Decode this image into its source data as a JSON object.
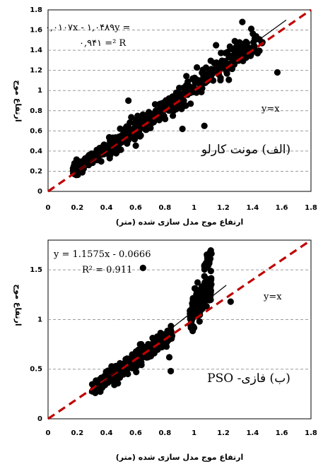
{
  "chart_data": [
    {
      "type": "scatter",
      "panel": "top",
      "xlabel": "ارتفاع موج مدل سازی شده (متر)",
      "ylabel": "ارتفاع موج",
      "xlim": [
        0,
        1.8
      ],
      "ylim": [
        0,
        1.8
      ],
      "x_ticks": [
        "0",
        "0.2",
        "0.4",
        "0.6",
        "0.8",
        "1",
        "1.2",
        "1.4",
        "1.6",
        "1.8"
      ],
      "y_ticks": [
        "0",
        "0.2",
        "0.4",
        "0.6",
        "0.8",
        "1",
        "1.2",
        "1.4",
        "1.6",
        "1.8"
      ],
      "grid": "horizontal dashed",
      "equation": "۰,۰۱۰۷x - ۱,۰۴۸۹y =",
      "r_squared": "۰,۹۴۱ =² R",
      "identity_label": "y=x",
      "method_label": "(الف) مونت کارلو",
      "trendline": {
        "slope": 1.0489,
        "intercept": -0.0107
      },
      "identity_color": "#c00000",
      "outliers": [
        [
          1.57,
          1.18
        ],
        [
          0.86,
          0.8
        ],
        [
          1.07,
          0.65
        ],
        [
          0.92,
          0.62
        ],
        [
          1.33,
          1.68
        ],
        [
          1.15,
          1.45
        ],
        [
          0.55,
          0.9
        ]
      ],
      "clusters": [
        {
          "x": [
            0.17,
            0.4
          ],
          "slope": 1.0,
          "intercept": 0.03,
          "spread": 0.05,
          "count": 170
        },
        {
          "x": [
            0.4,
            0.9
          ],
          "slope": 1.05,
          "intercept": -0.01,
          "spread": 0.09,
          "count": 230
        },
        {
          "x": [
            0.9,
            1.47
          ],
          "slope": 1.05,
          "intercept": -0.01,
          "spread": 0.12,
          "count": 170
        }
      ]
    },
    {
      "type": "scatter",
      "panel": "bottom",
      "xlabel": "ارتفاع موج مدل سازی شده (متر)",
      "ylabel": "ارتفاع موج",
      "xlim": [
        0,
        1.8
      ],
      "ylim": [
        0,
        1.8
      ],
      "x_ticks": [
        "0",
        "0.2",
        "0.4",
        "0.6",
        "0.8",
        "1",
        "1.2",
        "1.4",
        "1.6",
        "1.8"
      ],
      "y_ticks": [
        "0",
        "0.5",
        "1",
        "1.5"
      ],
      "grid": "horizontal dashed",
      "equation": "y = 1.1575x - 0.0666",
      "r_squared": "R² = 0.911",
      "identity_label": "y=x",
      "method_label": "(ب) فازی- PSO",
      "trendline": {
        "slope": 1.1575,
        "intercept": -0.0666
      },
      "identity_color": "#c00000",
      "outliers": [
        [
          0.65,
          1.52
        ],
        [
          1.25,
          1.18
        ],
        [
          0.63,
          0.75
        ],
        [
          0.84,
          0.48
        ],
        [
          0.83,
          0.62
        ]
      ],
      "clusters": [
        {
          "x": [
            0.3,
            0.85
          ],
          "slope": 1.0,
          "intercept": 0.0,
          "spread": 0.08,
          "count": 340
        },
        {
          "x": [
            0.97,
            1.12
          ],
          "slope": 2.2,
          "intercept": -1.1,
          "spread": 0.15,
          "count": 150
        },
        {
          "x": [
            1.07,
            1.12
          ],
          "slope": 2.0,
          "intercept": -0.6,
          "spread": 0.1,
          "count": 35
        }
      ]
    }
  ]
}
